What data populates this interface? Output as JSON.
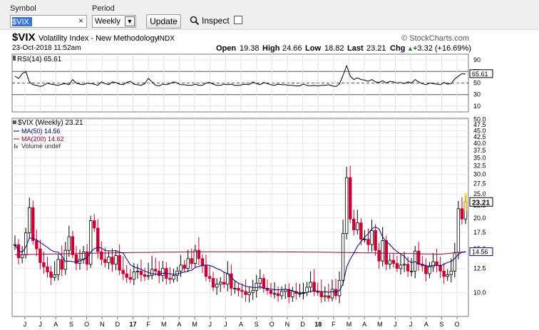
{
  "toolbar": {
    "symbol_label": "Symbol",
    "symbol_value": "$VIX",
    "clear_glyph": "×",
    "period_label": "Period",
    "period_value": "Weekly",
    "update_label": "Update",
    "inspect_label": "Inspect",
    "inspect_checked": false
  },
  "header": {
    "symbol": "$VIX",
    "name": "Volatility Index - New Methodology",
    "exchange": "INDX",
    "brand": "© StockCharts.com",
    "date": "23-Oct-2018 11:52am",
    "open_label": "Open",
    "open": "19.38",
    "high_label": "High",
    "high": "24.66",
    "low_label": "Low",
    "low": "18.82",
    "last_label": "Last",
    "last": "23.21",
    "chg_label": "Chg",
    "chg": "+3.32 (+16.69%)",
    "chg_arrow": "▲"
  },
  "colors": {
    "up": "#000000",
    "down": "#cc0033",
    "ma50": "#000080",
    "ma200": "#990033",
    "rsi": "#000000",
    "last_hl": "#ffdd55"
  },
  "chart_data": [
    {
      "type": "line",
      "title": "RSI(14) 65.61",
      "series": [
        {
          "name": "RSI(14)",
          "values": [
            62,
            58,
            66,
            70,
            52,
            47,
            46,
            44,
            46,
            50,
            48,
            47,
            46,
            48,
            49,
            47,
            56,
            50,
            48,
            47,
            50,
            49,
            48,
            46,
            52,
            49,
            47,
            52,
            51,
            48,
            47,
            51,
            53,
            48,
            47,
            46,
            49,
            58,
            52,
            46,
            45,
            48,
            47,
            49,
            52,
            50,
            47,
            47,
            46,
            46,
            48,
            46,
            46,
            50,
            51,
            48,
            46,
            46,
            48,
            47,
            48,
            46,
            46,
            47,
            48,
            47,
            52,
            49,
            47,
            51,
            49,
            47,
            46,
            48,
            47,
            47,
            46,
            46,
            45,
            45,
            48,
            46,
            45,
            46,
            45,
            46,
            46,
            47,
            45,
            44,
            48,
            63,
            80,
            62,
            56,
            59,
            56,
            55,
            53,
            56,
            52,
            51,
            54,
            50,
            53,
            52,
            50,
            51,
            49,
            52,
            50,
            56,
            52,
            49,
            47,
            50,
            49,
            48,
            47,
            51,
            48,
            49,
            57,
            62,
            66,
            65.61
          ]
        }
      ],
      "yticks": [
        90,
        70,
        50,
        30,
        10
      ],
      "ylim": [
        0,
        100
      ],
      "reference_lines": [
        70,
        50,
        30
      ],
      "last_value": "65.61"
    },
    {
      "type": "candlestick",
      "title": "$VIX (Weekly) 23.21",
      "legend": [
        "$VIX (Weekly) 23.21",
        "MA(50) 14.56",
        "MA(200) 14.62",
        "Volume undef"
      ],
      "scale": "log",
      "ylim": [
        8,
        50
      ],
      "yticks": [
        10,
        12.5,
        15,
        17.5,
        20,
        22.5,
        25,
        27.5,
        30,
        32.5,
        35,
        37.5,
        40,
        42.5,
        45,
        47.5,
        50
      ],
      "ytick_labels": [
        "10.0",
        "12.5",
        "15.0",
        "17.5",
        "20.0",
        "22.5",
        "25.0",
        "27.5",
        "30.0",
        "32.5",
        "35.0",
        "37.5",
        "40.0",
        "42.5",
        "45.0",
        "47.5",
        "50.0"
      ],
      "xtick_labels": [
        "J",
        "J",
        "A",
        "S",
        "O",
        "N",
        "D",
        "17",
        "F",
        "M",
        "A",
        "M",
        "J",
        "J",
        "A",
        "S",
        "O",
        "N",
        "D",
        "18",
        "F",
        "M",
        "A",
        "M",
        "J",
        "J",
        "A",
        "S",
        "O"
      ],
      "close": [
        15.6,
        13.8,
        14.2,
        17.4,
        22.0,
        16.2,
        15.0,
        13.2,
        12.7,
        12.1,
        11.5,
        11.8,
        13.6,
        12.4,
        14.8,
        16.8,
        14.2,
        13.1,
        13.6,
        14.6,
        13.0,
        19.5,
        18.2,
        14.6,
        13.6,
        13.2,
        13.9,
        13.0,
        14.1,
        12.3,
        11.9,
        11.5,
        11.3,
        12.1,
        12.2,
        11.8,
        11.6,
        11.7,
        12.4,
        12.2,
        11.7,
        12.5,
        11.4,
        11.3,
        11.7,
        12.2,
        12.9,
        12.5,
        13.7,
        13.1,
        14.8,
        13.7,
        12.8,
        11.6,
        11.4,
        10.5,
        10.8,
        11.0,
        10.8,
        11.9,
        10.4,
        10.4,
        10.2,
        10.1,
        9.8,
        10.0,
        10.2,
        10.9,
        11.4,
        10.4,
        10.2,
        9.9,
        9.9,
        9.7,
        10.1,
        10.3,
        9.6,
        10.1,
        9.9,
        9.9,
        10.0,
        10.5,
        11.0,
        10.1,
        10.0,
        9.6,
        9.7,
        9.5,
        10.3,
        9.7,
        11.2,
        17.3,
        29.1,
        19.8,
        17.9,
        19.1,
        16.4,
        16.4,
        15.6,
        17.8,
        14.8,
        13.4,
        16.2,
        13.0,
        13.5,
        13.1,
        12.5,
        12.9,
        13.0,
        12.2,
        12.2,
        14.7,
        13.0,
        12.8,
        11.9,
        12.7,
        13.3,
        12.9,
        12.2,
        11.6,
        11.8,
        12.2,
        14.5,
        21.8,
        19.8,
        23.21
      ],
      "ma50_last": 14.56,
      "ma200_last": 14.62,
      "last_value": "23.21"
    }
  ]
}
